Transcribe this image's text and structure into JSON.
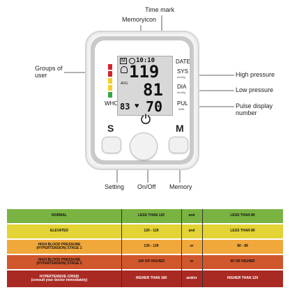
{
  "callouts": {
    "time_mark": "Time mark",
    "memory_icon": "Memoryicon",
    "groups_of_user": "Groups of\nuser",
    "high_pressure": "High pressure",
    "low_pressure": "Low pressure",
    "pulse_display_number": "Pulse display\nnumber",
    "setting": "Setting",
    "on_off": "On/Off",
    "memory": "Memory"
  },
  "device": {
    "lcd": {
      "time": "10:10",
      "memory_mark": "M",
      "sys_value": "119",
      "dia_value": "81",
      "pul_value": "70",
      "memory_count": "83",
      "avg": "AVG"
    },
    "labels": {
      "date": "DATE",
      "sys": "SYS",
      "sys_unit": "mmHg",
      "dia": "DIA",
      "dia_unit": "mmHg",
      "pul": "PUL",
      "pul_unit": "/MIN",
      "who": "WHO"
    },
    "buttons": {
      "s": "S",
      "m": "M"
    }
  },
  "table": {
    "rows": [
      {
        "category": "NORMAL",
        "systolic": "LESS THAN 120",
        "connector": "and",
        "diastolic": "LESS THAN 80",
        "color": "#7ab342"
      },
      {
        "category": "ELEVATED",
        "systolic": "120 - 129",
        "connector": "and",
        "diastolic": "LESS THAN 80",
        "color": "#e3d334"
      },
      {
        "category": "HIGH BLOOD PRESSURE\n(HYPERTENSION) STAGE 1",
        "systolic": "130 - 139",
        "connector": "or",
        "diastolic": "80 - 89",
        "color": "#f1a83b"
      },
      {
        "category": "HIGH BLOOD PRESSURE\n(HYPERTENSION) STAGE 2",
        "systolic": "140 OR HIGHER",
        "connector": "or",
        "diastolic": "90 OR HIGHER",
        "color": "#d0572b"
      },
      {
        "category": "HYPERTENSIVE CRISIS\n(consult your doctor immediately)",
        "systolic": "HIGHER THAN 180",
        "connector": "and/or",
        "diastolic": "HIGHER THAN 120",
        "color": "#a92a22"
      }
    ]
  },
  "colors": {
    "indicator_red": "#d3232b",
    "indicator_yellow": "#f3d12a",
    "indicator_green": "#36a845"
  }
}
